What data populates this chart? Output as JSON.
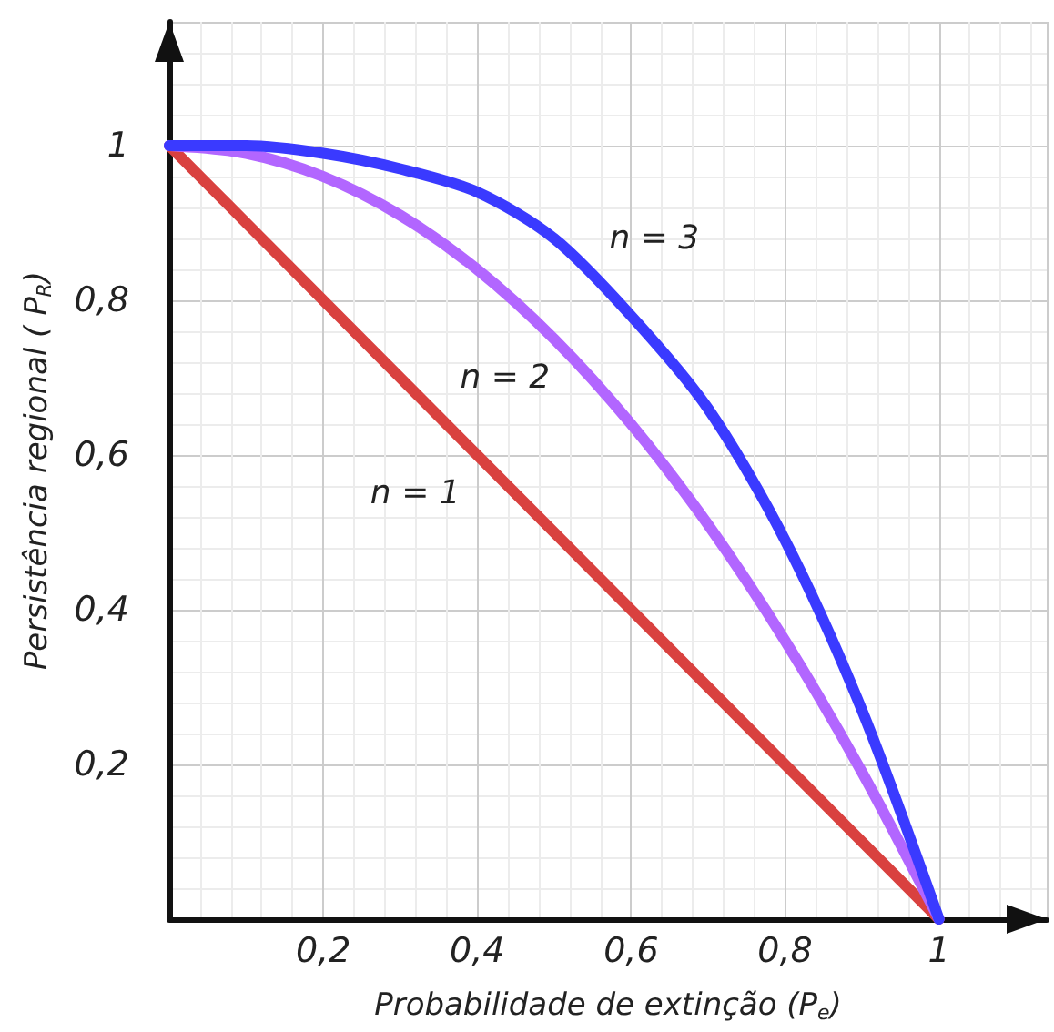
{
  "chart_data": {
    "type": "line",
    "xlabel": "Probabilidade de extinção (P$_{e}$)",
    "ylabel": "Persistência regional ( P$_{R}$)",
    "x": [
      0,
      0.1,
      0.2,
      0.3,
      0.4,
      0.5,
      0.6,
      0.7,
      0.8,
      0.9,
      1
    ],
    "series": [
      {
        "name": "n = 1",
        "color": "#d9413f",
        "values": [
          1,
          0.9,
          0.8,
          0.7,
          0.6,
          0.5,
          0.4,
          0.3,
          0.2,
          0.1,
          0
        ]
      },
      {
        "name": "n = 2",
        "color": "#b266ff",
        "values": [
          1,
          0.99,
          0.96,
          0.91,
          0.84,
          0.75,
          0.64,
          0.51,
          0.36,
          0.19,
          0
        ]
      },
      {
        "name": "n = 3",
        "color": "#3a3aff",
        "values": [
          1,
          1,
          0.99,
          0.97,
          0.94,
          0.88,
          0.78,
          0.66,
          0.49,
          0.27,
          0
        ]
      }
    ],
    "xlim": [
      0,
      1.14
    ],
    "ylim": [
      0,
      1.16
    ],
    "xticks": [
      {
        "value": 0.2,
        "label": "0,2"
      },
      {
        "value": 0.4,
        "label": "0,4"
      },
      {
        "value": 0.6,
        "label": "0,6"
      },
      {
        "value": 0.8,
        "label": "0,8"
      },
      1
    ],
    "yticks": [
      {
        "value": 0.2,
        "label": "0,2"
      },
      {
        "value": 0.4,
        "label": "0,4"
      },
      {
        "value": 0.6,
        "label": "0,6"
      },
      {
        "value": 0.8,
        "label": "0,8"
      },
      1
    ],
    "grid": true,
    "marker": "none",
    "line_style": "solid"
  }
}
